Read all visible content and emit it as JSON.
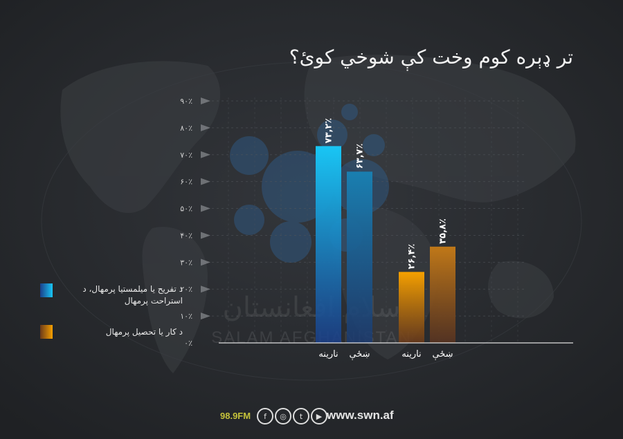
{
  "chart_data": {
    "type": "bar",
    "title": "تر ډېره کوم وخت کې شوخي کوئ؟",
    "categories": [
      "د تفریح یا میلمستیا پرمهال، د استراحت پرمهال",
      "د کار یا تحصیل پرمهال"
    ],
    "group_labels": [
      "نارینه",
      "ښځې"
    ],
    "series": [
      {
        "group": "د تفریح یا میلمستیا پرمهال، د استراحت پرمهال",
        "label": "نارینه",
        "value": 73.2,
        "value_label": "۷۳,۲٪",
        "color_top": "#19c6f5",
        "color_bottom": "#1a3f8a"
      },
      {
        "group": "د تفریح یا میلمستیا پرمهال، د استراحت پرمهال",
        "label": "ښځې",
        "value": 63.7,
        "value_label": "۶۳,۷٪",
        "color_top": "#1a7fb0",
        "color_bottom": "#1c3b70"
      },
      {
        "group": "د کار یا تحصیل پرمهال",
        "label": "نارینه",
        "value": 26.4,
        "value_label": "۲۶,۴٪",
        "color_top": "#f5a000",
        "color_bottom": "#6b3a1a"
      },
      {
        "group": "د کار یا تحصیل پرمهال",
        "label": "ښځې",
        "value": 35.8,
        "value_label": "۳۵,۸٪",
        "color_top": "#c07818",
        "color_bottom": "#5a3420"
      }
    ],
    "y_ticks": [
      {
        "value": 0,
        "label": "۰٪"
      },
      {
        "value": 10,
        "label": "۱۰٪"
      },
      {
        "value": 20,
        "label": "۲۰٪"
      },
      {
        "value": 30,
        "label": "۳۰٪"
      },
      {
        "value": 40,
        "label": "۴۰٪"
      },
      {
        "value": 50,
        "label": "۵۰٪"
      },
      {
        "value": 60,
        "label": "۶۰٪"
      },
      {
        "value": 70,
        "label": "۷۰٪"
      },
      {
        "value": 80,
        "label": "۸۰٪"
      },
      {
        "value": 90,
        "label": "۹۰٪"
      }
    ],
    "ylim": [
      0,
      90
    ],
    "grid": true,
    "legend_position": "left",
    "legend": [
      {
        "label": "د تفریح یا میلمستیا پرمهال، د استراحت پرمهال",
        "color_top": "#19c6f5",
        "color_bottom": "#1a3f8a"
      },
      {
        "label": "د کار یا تحصیل پرمهال",
        "color_top": "#f5a000",
        "color_bottom": "#6b3a1a"
      }
    ]
  },
  "watermark": {
    "line1": "سلام افغانستان",
    "line2": "SALAM AFGHANISTAN"
  },
  "footer": {
    "radio": "98.9FM",
    "social_icons": [
      "facebook-icon",
      "instagram-icon",
      "twitter-icon",
      "youtube-icon"
    ],
    "url": "www.swn.af"
  }
}
